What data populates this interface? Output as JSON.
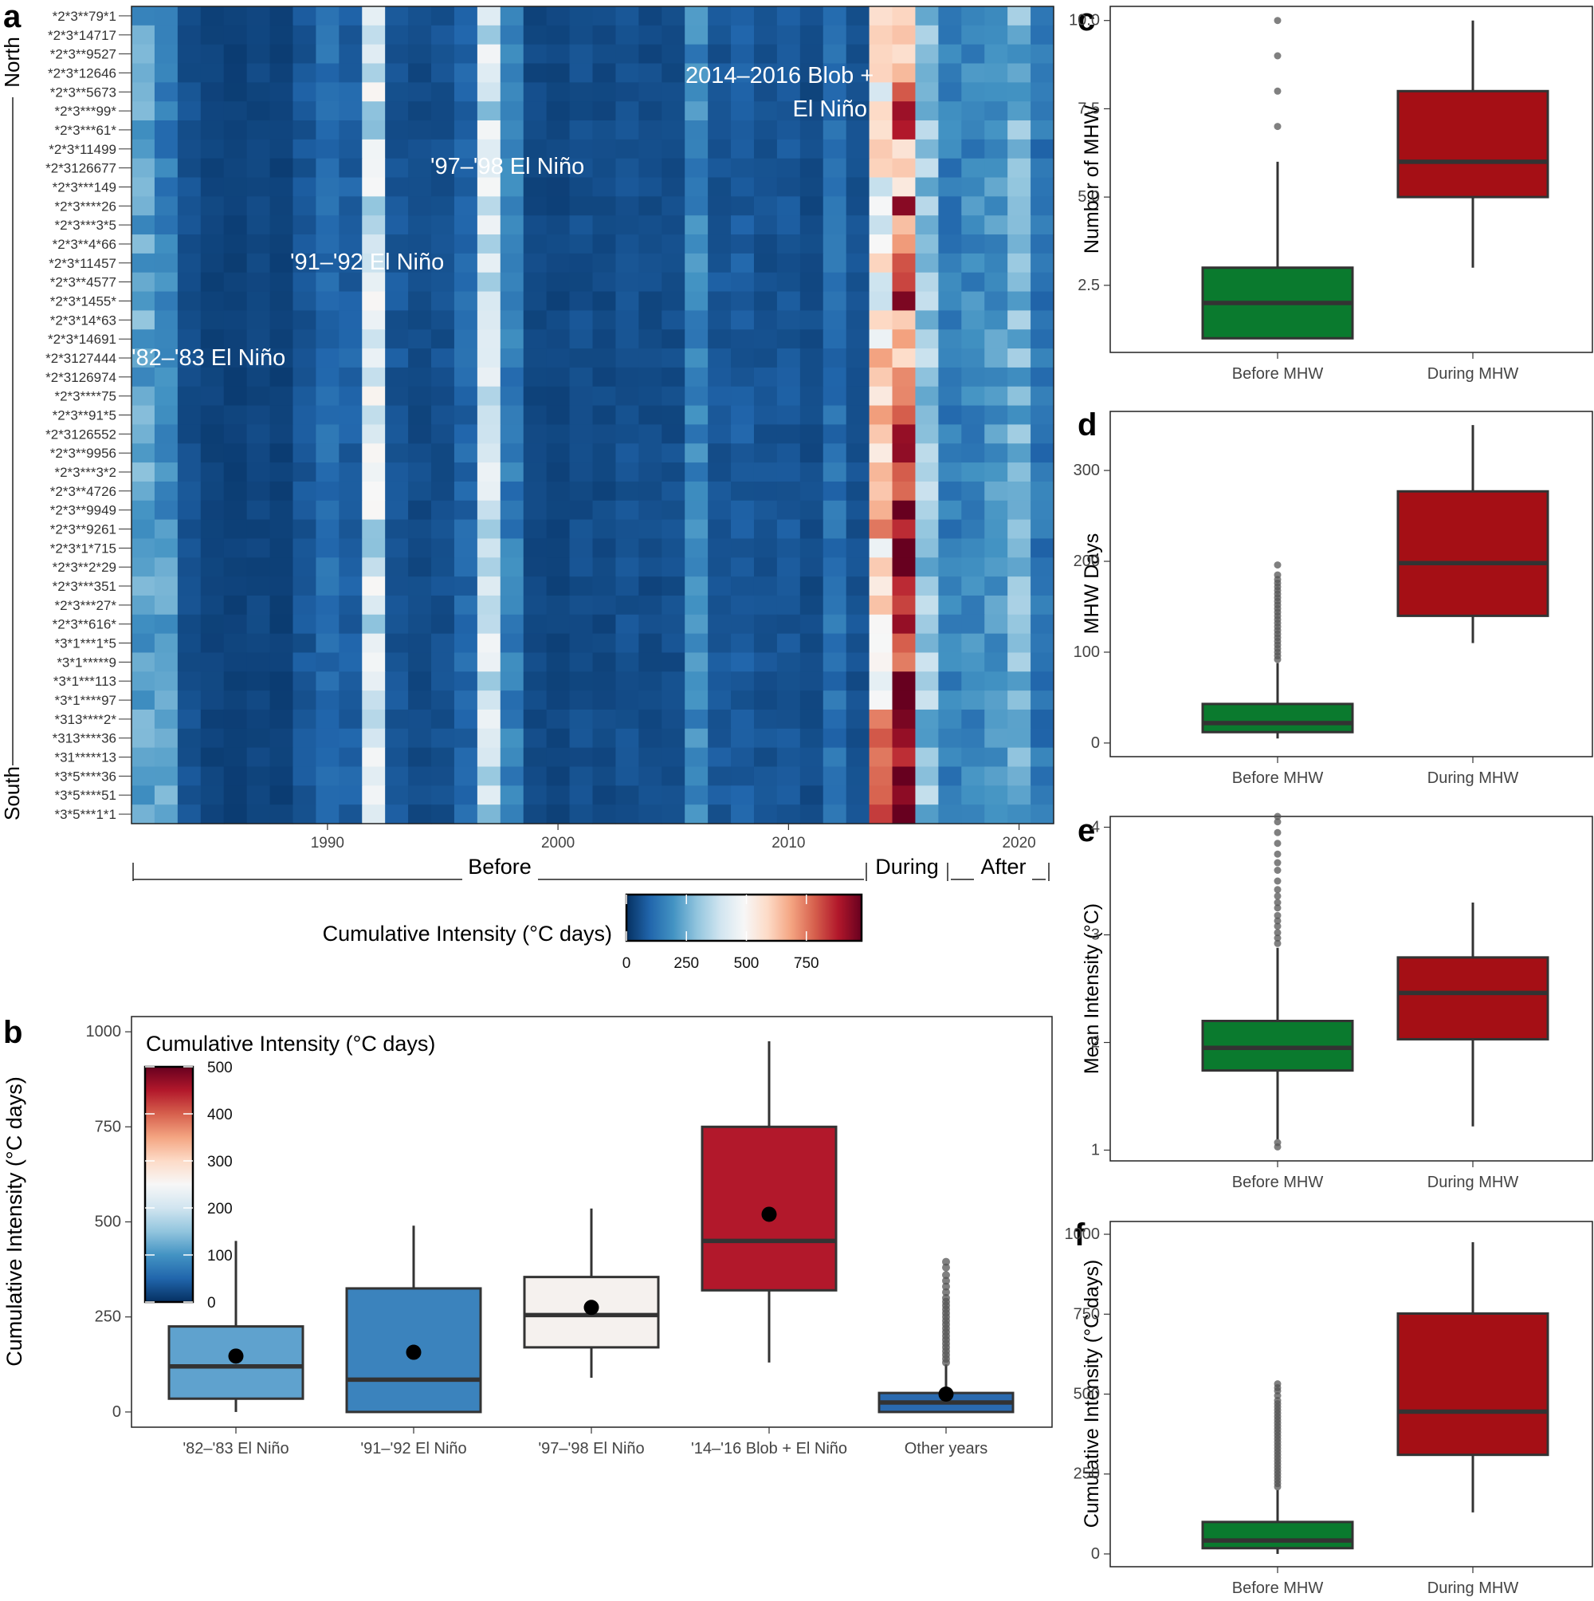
{
  "panel_letters": {
    "a": "a",
    "b": "b",
    "c": "c",
    "d": "d",
    "e": "e",
    "f": "f"
  },
  "colors": {
    "green_box": "#0a7a2e",
    "red_box": "#a50f15",
    "box_line": "#333333",
    "outlier": "#555555",
    "rdbu": [
      "#053061",
      "#2166ac",
      "#4393c3",
      "#92c5de",
      "#d1e5f0",
      "#f7f7f7",
      "#fddbc7",
      "#f4a582",
      "#d6604d",
      "#b2182b",
      "#67001f"
    ]
  },
  "chart_data": [
    {
      "id": "a",
      "type": "heatmap",
      "title": "",
      "ylabel_top": "North",
      "ylabel_bottom": "South",
      "sites": [
        "*2*3**79*1",
        "*2*3*14717",
        "*2*3**9527",
        "*2*3*12646",
        "*2*3**5673",
        "*2*3***99*",
        "*2*3***61*",
        "*2*3*11499",
        "*2*3126677",
        "*2*3***149",
        "*2*3****26",
        "*2*3***3*5",
        "*2*3**4*66",
        "*2*3*11457",
        "*2*3**4577",
        "*2*3*1455*",
        "*2*3*14*63",
        "*2*3*14691",
        "*2*3127444",
        "*2*3126974",
        "*2*3****75",
        "*2*3**91*5",
        "*2*3126552",
        "*2*3**9956",
        "*2*3***3*2",
        "*2*3**4726",
        "*2*3**9949",
        "*2*3**9261",
        "*2*3*1*715",
        "*2*3**2*29",
        "*2*3***351",
        "*2*3***27*",
        "*2*3**616*",
        "*3*1***1*5",
        "*3*1*****9",
        "*3*1***113",
        "*3*1****97",
        "*313****2*",
        "*313****36",
        "*31*****13",
        "*3*5****36",
        "*3*5****51",
        "*3*5***1*1"
      ],
      "years_start": 1982,
      "years_end": 2021,
      "x_ticks": [
        "1990",
        "2000",
        "2010",
        "2020"
      ],
      "x_tick_values": [
        1990,
        2000,
        2010,
        2020
      ],
      "periods": {
        "before": "Before",
        "during": "During",
        "after": "After"
      },
      "annotations": [
        "'82–'83 El Niño",
        "'91–'92 El Niño",
        "'97–'98 El Niño",
        "2014–2016 Blob +",
        "El Niño"
      ],
      "legend": {
        "title": "Cumulative Intensity (°C days)",
        "range": [
          0,
          980
        ],
        "ticks": [
          "0",
          "250",
          "500",
          "750"
        ],
        "tick_values": [
          0,
          250,
          500,
          750
        ]
      },
      "value_profile": {
        "1982": 230,
        "1983": 180,
        "1984": 60,
        "1985": 35,
        "1986": 30,
        "1987": 40,
        "1988": 30,
        "1989": 70,
        "1990": 110,
        "1991": 90,
        "1992": 400,
        "1993": 70,
        "1994": 50,
        "1995": 60,
        "1996": 100,
        "1997": 380,
        "1998": 150,
        "1999": 45,
        "2000": 40,
        "2001": 55,
        "2002": 45,
        "2003": 60,
        "2004": 50,
        "2005": 55,
        "2006": 170,
        "2007": 70,
        "2008": 80,
        "2009": 60,
        "2010": 70,
        "2011": 50,
        "2012": 120,
        "2013": 60,
        "2014": 560,
        "2015": 830,
        "2016": 300,
        "2017": 150,
        "2018": 170,
        "2019": 200,
        "2020": 260,
        "2021": 130
      }
    },
    {
      "id": "b",
      "type": "box",
      "ylabel": "Cumulative Intensity (°C days)",
      "ylim": [
        -40,
        1040
      ],
      "y_ticks": [
        "0",
        "250",
        "500",
        "750",
        "1000"
      ],
      "y_tick_values": [
        0,
        250,
        500,
        750,
        1000
      ],
      "legend": {
        "title": "Cumulative Intensity (°C days)",
        "range": [
          0,
          500
        ],
        "ticks": [
          "0",
          "100",
          "200",
          "300",
          "400",
          "500"
        ],
        "tick_values": [
          0,
          100,
          200,
          300,
          400,
          500
        ]
      },
      "boxes": [
        {
          "category": "'82–'83 El Niño",
          "whisker_low": 0,
          "q1": 35,
          "median": 120,
          "q3": 225,
          "whisker_high": 450,
          "mean": 147,
          "fill": "#5fa2ce",
          "outliers": []
        },
        {
          "category": "'91–'92 El Niño",
          "whisker_low": 0,
          "q1": 0,
          "median": 85,
          "q3": 325,
          "whisker_high": 490,
          "mean": 157,
          "fill": "#3b83bd",
          "outliers": []
        },
        {
          "category": "'97–'98 El Niño",
          "whisker_low": 90,
          "q1": 170,
          "median": 255,
          "q3": 355,
          "whisker_high": 535,
          "mean": 275,
          "fill": "#f5f1ee",
          "outliers": []
        },
        {
          "category": "'14–'16 Blob + El Niño",
          "whisker_low": 130,
          "q1": 320,
          "median": 450,
          "q3": 750,
          "whisker_high": 975,
          "mean": 520,
          "fill": "#b2182b",
          "outliers": []
        },
        {
          "category": "Other years",
          "whisker_low": 0,
          "q1": 0,
          "median": 25,
          "q3": 50,
          "whisker_high": 125,
          "mean": 47,
          "fill": "#2a6aaf",
          "outliers": [
            130,
            140,
            150,
            160,
            170,
            180,
            190,
            200,
            210,
            220,
            230,
            240,
            250,
            260,
            270,
            280,
            290,
            300,
            315,
            330,
            345,
            360,
            380,
            395
          ]
        }
      ]
    },
    {
      "id": "c",
      "type": "box",
      "ylabel": "Number of MHW",
      "ylim": [
        0.6,
        10.4
      ],
      "y_ticks": [
        "2.5",
        "5.0",
        "7.5",
        "10.0"
      ],
      "y_tick_values": [
        2.5,
        5.0,
        7.5,
        10.0
      ],
      "boxes": [
        {
          "category": "Before MHW",
          "whisker_low": 1,
          "q1": 1,
          "median": 2,
          "q3": 3,
          "whisker_high": 6,
          "fill": "#0a7a2e",
          "outliers": [
            7,
            8,
            9,
            10
          ]
        },
        {
          "category": "During MHW",
          "whisker_low": 3,
          "q1": 5,
          "median": 6,
          "q3": 8,
          "whisker_high": 10,
          "fill": "#a50f15",
          "outliers": []
        }
      ]
    },
    {
      "id": "d",
      "type": "box",
      "ylabel": "MHW Days",
      "ylim": [
        -15,
        365
      ],
      "y_ticks": [
        "0",
        "100",
        "200",
        "300"
      ],
      "y_tick_values": [
        0,
        100,
        200,
        300
      ],
      "boxes": [
        {
          "category": "Before MHW",
          "whisker_low": 5,
          "q1": 12,
          "median": 22,
          "q3": 43,
          "whisker_high": 88,
          "fill": "#0a7a2e",
          "outliers": [
            92,
            96,
            100,
            104,
            108,
            112,
            116,
            120,
            124,
            128,
            132,
            136,
            140,
            144,
            148,
            152,
            156,
            160,
            164,
            168,
            172,
            176,
            180,
            185,
            196
          ]
        },
        {
          "category": "During MHW",
          "whisker_low": 110,
          "q1": 140,
          "median": 198,
          "q3": 277,
          "whisker_high": 350,
          "fill": "#a50f15",
          "outliers": []
        }
      ]
    },
    {
      "id": "e",
      "type": "box",
      "ylabel": "Mean Intensity (°C)",
      "ylim": [
        0.9,
        4.1
      ],
      "y_ticks": [
        "1",
        "2",
        "3",
        "4"
      ],
      "y_tick_values": [
        1,
        2,
        3,
        4
      ],
      "boxes": [
        {
          "category": "Before MHW",
          "whisker_low": 1.1,
          "q1": 1.74,
          "median": 1.95,
          "q3": 2.2,
          "whisker_high": 2.88,
          "fill": "#0a7a2e",
          "outliers": [
            1.03,
            1.07,
            2.92,
            2.97,
            3.02,
            3.08,
            3.13,
            3.18,
            3.25,
            3.3,
            3.36,
            3.42,
            3.5,
            3.6,
            3.67,
            3.75,
            3.85,
            3.95,
            4.05,
            4.1
          ]
        },
        {
          "category": "During MHW",
          "whisker_low": 1.22,
          "q1": 2.03,
          "median": 2.46,
          "q3": 2.79,
          "whisker_high": 3.3,
          "fill": "#a50f15",
          "outliers": []
        }
      ]
    },
    {
      "id": "f",
      "type": "box",
      "ylabel": "Cumulative Intensity (°C days)",
      "ylim": [
        -40,
        1040
      ],
      "y_ticks": [
        "0",
        "250",
        "500",
        "750",
        "1000"
      ],
      "y_tick_values": [
        0,
        250,
        500,
        750,
        1000
      ],
      "boxes": [
        {
          "category": "Before MHW",
          "whisker_low": 0,
          "q1": 18,
          "median": 42,
          "q3": 100,
          "whisker_high": 200,
          "fill": "#0a7a2e",
          "outliers": [
            210,
            220,
            230,
            240,
            250,
            260,
            270,
            280,
            290,
            300,
            310,
            320,
            330,
            340,
            350,
            360,
            370,
            380,
            390,
            400,
            410,
            420,
            430,
            440,
            450,
            460,
            470,
            480,
            495,
            510,
            520,
            532
          ]
        },
        {
          "category": "During MHW",
          "whisker_low": 130,
          "q1": 310,
          "median": 445,
          "q3": 752,
          "whisker_high": 975,
          "fill": "#a50f15",
          "outliers": []
        }
      ]
    }
  ]
}
